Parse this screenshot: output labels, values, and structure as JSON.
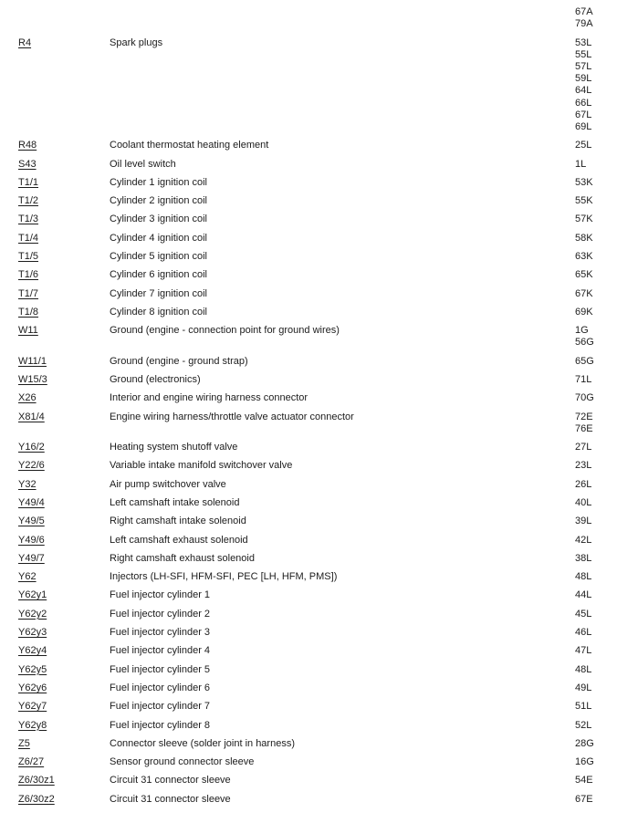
{
  "page": {
    "background_color": "#ffffff",
    "text_color": "#1c1c1c"
  },
  "table": {
    "rows": [
      {
        "code": "",
        "description": "",
        "locations": [
          "67A",
          "79A"
        ]
      },
      {
        "code": "R4",
        "description": "Spark plugs",
        "locations": [
          "53L",
          "55L",
          "57L",
          "59L",
          "64L",
          "66L",
          "67L",
          "69L"
        ],
        "spacing_before": true
      },
      {
        "code": "R48",
        "description": "Coolant thermostat heating element",
        "locations": [
          "25L"
        ]
      },
      {
        "code": "S43",
        "description": "Oil level switch",
        "locations": [
          "1L"
        ]
      },
      {
        "code": "T1/1",
        "description": "Cylinder 1 ignition coil",
        "locations": [
          "53K"
        ]
      },
      {
        "code": "T1/2",
        "description": "Cylinder 2 ignition coil",
        "locations": [
          "55K"
        ]
      },
      {
        "code": "T1/3",
        "description": "Cylinder 3 ignition coil",
        "locations": [
          "57K"
        ]
      },
      {
        "code": "T1/4",
        "description": "Cylinder 4 ignition coil",
        "locations": [
          "58K"
        ]
      },
      {
        "code": "T1/5",
        "description": "Cylinder 5 ignition coil",
        "locations": [
          "63K"
        ]
      },
      {
        "code": "T1/6",
        "description": "Cylinder 6 ignition coil",
        "locations": [
          "65K"
        ]
      },
      {
        "code": "T1/7",
        "description": "Cylinder 7 ignition coil",
        "locations": [
          "67K"
        ]
      },
      {
        "code": "T1/8",
        "description": "Cylinder 8 ignition coil",
        "locations": [
          "69K"
        ]
      },
      {
        "code": "W11",
        "description": "Ground (engine - connection point for ground wires)",
        "locations": [
          "1G",
          "56G"
        ]
      },
      {
        "code": "W11/1",
        "description": "Ground (engine - ground strap)",
        "locations": [
          "65G"
        ]
      },
      {
        "code": "W15/3",
        "description": "Ground (electronics)",
        "locations": [
          "71L"
        ]
      },
      {
        "code": "X26",
        "description": "Interior and engine wiring harness connector",
        "locations": [
          "70G"
        ]
      },
      {
        "code": "X81/4",
        "description": "Engine wiring harness/throttle valve actuator connector",
        "locations": [
          "72E",
          "76E"
        ]
      },
      {
        "code": "Y16/2",
        "description": "Heating system shutoff valve",
        "locations": [
          "27L"
        ]
      },
      {
        "code": "Y22/6",
        "description": "Variable intake manifold switchover valve",
        "locations": [
          "23L"
        ]
      },
      {
        "code": "Y32",
        "description": "Air pump switchover valve",
        "locations": [
          "26L"
        ]
      },
      {
        "code": "Y49/4",
        "description": "Left camshaft intake solenoid",
        "locations": [
          "40L"
        ]
      },
      {
        "code": "Y49/5",
        "description": "Right camshaft intake solenoid",
        "locations": [
          "39L"
        ]
      },
      {
        "code": "Y49/6",
        "description": "Left camshaft exhaust solenoid",
        "locations": [
          "42L"
        ]
      },
      {
        "code": "Y49/7",
        "description": "Right camshaft exhaust solenoid",
        "locations": [
          "38L"
        ]
      },
      {
        "code": "Y62",
        "description": "Injectors (LH-SFI, HFM-SFI, PEC [LH, HFM, PMS])",
        "locations": [
          "48L"
        ]
      },
      {
        "code": "Y62y1",
        "description": "Fuel injector cylinder 1",
        "locations": [
          "44L"
        ]
      },
      {
        "code": "Y62y2",
        "description": "Fuel injector cylinder 2",
        "locations": [
          "45L"
        ]
      },
      {
        "code": "Y62y3",
        "description": "Fuel injector cylinder 3",
        "locations": [
          "46L"
        ]
      },
      {
        "code": "Y62y4",
        "description": "Fuel injector cylinder 4",
        "locations": [
          "47L"
        ]
      },
      {
        "code": "Y62y5",
        "description": "Fuel injector cylinder 5",
        "locations": [
          "48L"
        ]
      },
      {
        "code": "Y62y6",
        "description": "Fuel injector cylinder 6",
        "locations": [
          "49L"
        ]
      },
      {
        "code": "Y62y7",
        "description": "Fuel injector cylinder 7",
        "locations": [
          "51L"
        ]
      },
      {
        "code": "Y62y8",
        "description": "Fuel injector cylinder 8",
        "locations": [
          "52L"
        ]
      },
      {
        "code": "Z5",
        "description": "Connector sleeve (solder joint in harness)",
        "locations": [
          "28G"
        ]
      },
      {
        "code": "Z6/27",
        "description": "Sensor ground connector sleeve",
        "locations": [
          "16G"
        ]
      },
      {
        "code": "Z6/30z1",
        "description": "Circuit 31 connector sleeve",
        "locations": [
          "54E"
        ]
      },
      {
        "code": "Z6/30z2",
        "description": "Circuit 31 connector sleeve",
        "locations": [
          "67E"
        ]
      }
    ]
  }
}
